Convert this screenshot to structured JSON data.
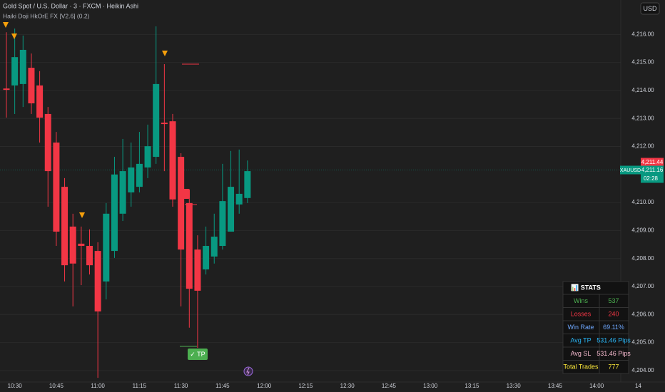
{
  "chart_data": {
    "type": "candlestick",
    "title": "Gold Spot / U.S. Dollar · 3 · FXCM · Heikin Ashi",
    "subtitle": "Haiki Doji HkOrE FX [V2.6] (0.2)",
    "currency": "USD",
    "symbol": "XAUUSD",
    "countdown": "02:28",
    "tp_label": "✓ TP",
    "up_color": "#089981",
    "down_color": "#f23645",
    "grid": true,
    "ylim": [
      4203.59,
      4217.23
    ],
    "yticks": [
      {
        "value": 4204,
        "label": "4,204.00"
      },
      {
        "value": 4205,
        "label": "4,205.00"
      },
      {
        "value": 4206,
        "label": "4,206.00"
      },
      {
        "value": 4207,
        "label": "4,207.00"
      },
      {
        "value": 4208,
        "label": "4,208.00"
      },
      {
        "value": 4209,
        "label": "4,209.00"
      },
      {
        "value": 4210,
        "label": "4,210.00"
      },
      {
        "value": 4212,
        "label": "4,212.00"
      },
      {
        "value": 4213,
        "label": "4,213.00"
      },
      {
        "value": 4214,
        "label": "4,214.00"
      },
      {
        "value": 4215,
        "label": "4,215.00"
      },
      {
        "value": 4216,
        "label": "4,216.00"
      }
    ],
    "price_marks": [
      {
        "value": 4211.44,
        "label": "4,211.44",
        "color": "#f23645"
      },
      {
        "value": 4211.16,
        "label": "4,211.16",
        "color": "#089981"
      }
    ],
    "categories": [
      null,
      "10:30",
      null,
      null,
      null,
      null,
      "10:45",
      null,
      null,
      null,
      null,
      "11:00",
      null,
      null,
      null,
      null,
      "11:15",
      null,
      null,
      null,
      null,
      "11:30",
      null,
      null,
      null,
      null,
      "11:45",
      null,
      null,
      null,
      null,
      "12:00",
      null,
      null,
      null,
      null,
      "12:15",
      null,
      null,
      null,
      null,
      "12:30",
      null,
      null,
      null,
      null,
      "12:45",
      null,
      null,
      null,
      null,
      "13:00",
      null,
      null,
      null,
      null,
      "13:15",
      null,
      null,
      null,
      null,
      "13:30",
      null,
      null,
      null,
      null,
      "13:45",
      null,
      null,
      null,
      null,
      "14:00",
      null,
      null,
      null,
      null,
      "14"
    ],
    "open": [
      4214.07,
      4214.18,
      4214.23,
      4214.81,
      4214.18,
      4213.16,
      4212.14,
      4210.56,
      4209.14,
      4208.53,
      4208.45,
      4208.27,
      4207.18,
      4208.27,
      4209.6,
      4210.36,
      4210.56,
      4211.25,
      4211.63,
      4212.85,
      4212.9,
      4211.63,
      4209.98,
      4208.32,
      4207.61,
      4208.07,
      4208.45,
      4208.96,
      4209.93,
      4210.16,
      null,
      null,
      null,
      null,
      null,
      null,
      null,
      null,
      null,
      null,
      null,
      null,
      null,
      null,
      null,
      null,
      null,
      null,
      null,
      null,
      null,
      null,
      null,
      null,
      null,
      null,
      null,
      null,
      null,
      null,
      null,
      null,
      null,
      null,
      null,
      null,
      null,
      null,
      null,
      null,
      null,
      null,
      null,
      null,
      null,
      null,
      null
    ],
    "high": [
      4216.08,
      4216.21,
      4215.96,
      4215.32,
      4214.69,
      4213.41,
      4212.52,
      4210.87,
      4209.6,
      4209.14,
      4209.04,
      4208.58,
      4209.98,
      4211.63,
      4212.27,
      4212.14,
      4212.52,
      4212.78,
      4216.29,
      4214.94,
      4213.16,
      4211.76,
      4210.23,
      4208.83,
      4209.14,
      4209.6,
      4211.38,
      4211.84,
      4211.89,
      4211.5,
      null,
      null,
      null,
      null,
      null,
      null,
      null,
      null,
      null,
      null,
      null,
      null,
      null,
      null,
      null,
      null,
      null,
      null,
      null,
      null,
      null,
      null,
      null,
      null,
      null,
      null,
      null,
      null,
      null,
      null,
      null,
      null,
      null,
      null,
      null,
      null,
      null,
      null,
      null,
      null,
      null,
      null,
      null,
      null,
      null,
      null,
      null
    ],
    "low": [
      4213.03,
      4213.16,
      4213.41,
      4213.16,
      4212.14,
      4209.85,
      4208.45,
      4207.18,
      4206.29,
      4207.05,
      4207.43,
      4203.74,
      4206.54,
      4208.02,
      4209.34,
      4209.85,
      4210.36,
      4210.87,
      4211.38,
      4211.12,
      4209.85,
      4206.29,
      4205.53,
      4204.81,
      4207.43,
      4207.82,
      4208.32,
      4208.96,
      4209.6,
      4209.98,
      null,
      null,
      null,
      null,
      null,
      null,
      null,
      null,
      null,
      null,
      null,
      null,
      null,
      null,
      null,
      null,
      null,
      null,
      null,
      null,
      null,
      null,
      null,
      null,
      null,
      null,
      null,
      null,
      null,
      null,
      null,
      null,
      null,
      null,
      null,
      null,
      null,
      null,
      null,
      null,
      null,
      null,
      null,
      null,
      null,
      null,
      null
    ],
    "close": [
      4214.02,
      4215.19,
      4215.45,
      4213.54,
      4213.03,
      4211.12,
      4208.96,
      4207.76,
      4207.82,
      4208.45,
      4207.76,
      4206.11,
      4209.6,
      4211.0,
      4211.12,
      4211.25,
      4211.38,
      4212.01,
      4214.23,
      4212.8,
      4210.11,
      4208.32,
      4206.92,
      4206.85,
      4208.45,
      4208.78,
      4210.05,
      4210.56,
      4210.31,
      4211.12,
      null,
      null,
      null,
      null,
      null,
      null,
      null,
      null,
      null,
      null,
      null,
      null,
      null,
      null,
      null,
      null,
      null,
      null,
      null,
      null,
      null,
      null,
      null,
      null,
      null,
      null,
      null,
      null,
      null,
      null,
      null,
      null,
      null,
      null,
      null,
      null,
      null,
      null,
      null,
      null,
      null,
      null,
      null,
      null,
      null,
      null,
      null
    ]
  },
  "stats_table": {
    "title": "📊 STATS",
    "rows": [
      [
        "Wins",
        "537"
      ],
      [
        "Losses",
        "240"
      ],
      [
        "Win Rate",
        "69.11%"
      ],
      [
        "Avg TP",
        "531.46 Pips"
      ],
      [
        "Avg SL",
        "531.46 Pips"
      ],
      [
        "Total Trades",
        "777"
      ]
    ],
    "colors": [
      "#4caf50",
      "#f23645",
      "#6fa8ff",
      "#29b6f6",
      "#f8bbd0",
      "#ffeb3b"
    ]
  }
}
